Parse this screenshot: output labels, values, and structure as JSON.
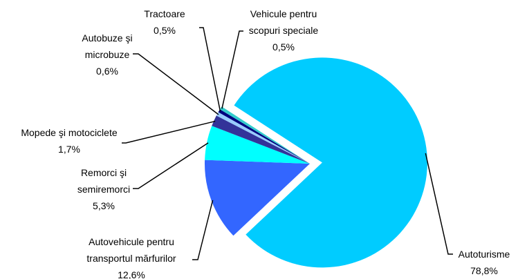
{
  "chart_data": {
    "type": "pie",
    "categories": [
      "Autoturisme",
      "Autovehicule pentru transportul mărfurilor",
      "Remorci şi semiremorci",
      "Mopede şi motociclete",
      "Autobuze şi microbuze",
      "Tractoare",
      "Vehicule pentru scopuri speciale"
    ],
    "values": [
      78.8,
      12.6,
      5.3,
      1.7,
      0.6,
      0.5,
      0.5
    ],
    "value_labels": [
      "78,8%",
      "12,6%",
      "5,3%",
      "1,7%",
      "0,6%",
      "0,5%",
      "0,5%"
    ],
    "colors": [
      "#00ccff",
      "#3366ff",
      "#00ffff",
      "#333399",
      "#99ccff",
      "#000080",
      "#33cccc"
    ]
  }
}
